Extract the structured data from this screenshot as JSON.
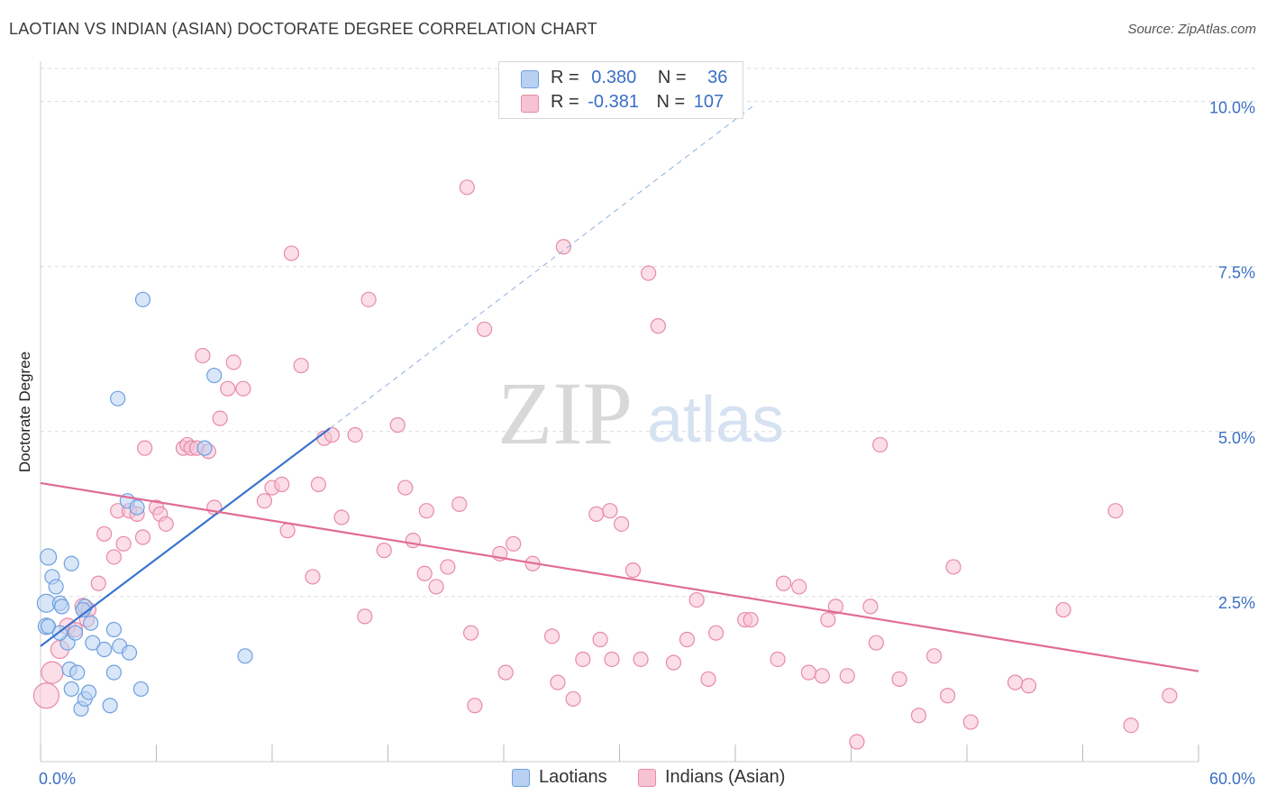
{
  "title": "LAOTIAN VS INDIAN (ASIAN) DOCTORATE DEGREE CORRELATION CHART",
  "source": "Source: ZipAtlas.com",
  "watermark": {
    "zip": "ZIP",
    "atlas": "atlas"
  },
  "legend": {
    "laotian": {
      "r_label": "R =",
      "r_value": "0.380",
      "n_label": "N =",
      "n_value": "36",
      "color": "#6fa0e0",
      "fill": "#b8d1f3"
    },
    "indian": {
      "r_label": "R =",
      "r_value": "-0.381",
      "n_label": "N =",
      "n_value": "107",
      "color": "#e88aa8",
      "fill": "#f7c3d3"
    }
  },
  "bottom_legend": {
    "laotian": "Laotians",
    "indian": "Indians (Asian)"
  },
  "chart_data": {
    "type": "scatter",
    "title": "LAOTIAN VS INDIAN (ASIAN) DOCTORATE DEGREE CORRELATION CHART",
    "xlabel": "",
    "ylabel": "Doctorate Degree",
    "xlim": [
      0,
      60
    ],
    "ylim": [
      0,
      10.5
    ],
    "x_tick_labels": [
      "0.0%",
      "60.0%"
    ],
    "y_ticks": [
      2.5,
      5.0,
      7.5,
      10.0
    ],
    "y_tick_labels": [
      "2.5%",
      "5.0%",
      "7.5%",
      "10.0%"
    ],
    "series": [
      {
        "name": "Laotians",
        "color": "#6fa0e0",
        "fill": "#b8d1f3",
        "points": [
          [
            0.4,
            3.1,
            9
          ],
          [
            0.3,
            2.4,
            10
          ],
          [
            0.3,
            2.05,
            9
          ],
          [
            0.6,
            2.8,
            8
          ],
          [
            0.8,
            2.65,
            8
          ],
          [
            0.4,
            2.05,
            8
          ],
          [
            1.0,
            2.4,
            8
          ],
          [
            1.1,
            2.35,
            8
          ],
          [
            1.4,
            1.8,
            8
          ],
          [
            1.0,
            1.95,
            8
          ],
          [
            1.6,
            3.0,
            8
          ],
          [
            1.8,
            1.95,
            8
          ],
          [
            1.5,
            1.4,
            8
          ],
          [
            1.9,
            1.35,
            8
          ],
          [
            1.6,
            1.1,
            8
          ],
          [
            2.1,
            0.8,
            8
          ],
          [
            2.3,
            0.95,
            8
          ],
          [
            2.5,
            1.05,
            8
          ],
          [
            2.3,
            2.35,
            8
          ],
          [
            2.6,
            2.1,
            8
          ],
          [
            2.7,
            1.8,
            8
          ],
          [
            3.3,
            1.7,
            8
          ],
          [
            3.6,
            0.85,
            8
          ],
          [
            3.8,
            2.0,
            8
          ],
          [
            3.8,
            1.35,
            8
          ],
          [
            4.1,
            1.75,
            8
          ],
          [
            4.6,
            1.65,
            8
          ],
          [
            5.2,
            1.1,
            8
          ],
          [
            4.5,
            3.95,
            8
          ],
          [
            5.0,
            3.85,
            8
          ],
          [
            4.0,
            5.5,
            8
          ],
          [
            5.3,
            7.0,
            8
          ],
          [
            9.0,
            5.85,
            8
          ],
          [
            8.5,
            4.75,
            8
          ],
          [
            10.6,
            1.6,
            8
          ],
          [
            2.2,
            2.3,
            8
          ]
        ]
      },
      {
        "name": "Indians (Asian)",
        "color": "#e88aa8",
        "fill": "#f7c3d3",
        "points": [
          [
            0.3,
            1.0,
            14
          ],
          [
            0.6,
            1.35,
            12
          ],
          [
            1.0,
            1.7,
            10
          ],
          [
            1.4,
            2.05,
            9
          ],
          [
            2.2,
            2.35,
            9
          ],
          [
            1.8,
            2.0,
            8
          ],
          [
            2.4,
            2.15,
            8
          ],
          [
            2.5,
            2.3,
            8
          ],
          [
            3.0,
            2.7,
            8
          ],
          [
            3.3,
            3.45,
            8
          ],
          [
            3.8,
            3.1,
            8
          ],
          [
            4.0,
            3.8,
            8
          ],
          [
            4.3,
            3.3,
            8
          ],
          [
            4.6,
            3.8,
            8
          ],
          [
            5.0,
            3.75,
            8
          ],
          [
            5.3,
            3.4,
            8
          ],
          [
            5.4,
            4.75,
            8
          ],
          [
            6.0,
            3.85,
            8
          ],
          [
            6.2,
            3.75,
            8
          ],
          [
            6.5,
            3.6,
            8
          ],
          [
            7.4,
            4.75,
            8
          ],
          [
            7.6,
            4.8,
            8
          ],
          [
            7.8,
            4.75,
            8
          ],
          [
            8.1,
            4.75,
            8
          ],
          [
            8.4,
            6.15,
            8
          ],
          [
            8.7,
            4.7,
            8
          ],
          [
            9.0,
            3.85,
            8
          ],
          [
            9.3,
            5.2,
            8
          ],
          [
            9.7,
            5.65,
            8
          ],
          [
            10.0,
            6.05,
            8
          ],
          [
            10.5,
            5.65,
            8
          ],
          [
            11.6,
            3.95,
            8
          ],
          [
            12.0,
            4.15,
            8
          ],
          [
            12.8,
            3.5,
            8
          ],
          [
            13.0,
            7.7,
            8
          ],
          [
            13.5,
            6.0,
            8
          ],
          [
            14.1,
            2.8,
            8
          ],
          [
            14.7,
            4.9,
            8
          ],
          [
            15.1,
            4.95,
            8
          ],
          [
            15.6,
            3.7,
            8
          ],
          [
            16.3,
            4.95,
            8
          ],
          [
            17.0,
            7.0,
            8
          ],
          [
            16.8,
            2.2,
            8
          ],
          [
            17.8,
            3.2,
            8
          ],
          [
            18.5,
            5.1,
            8
          ],
          [
            18.9,
            4.15,
            8
          ],
          [
            19.3,
            3.35,
            8
          ],
          [
            19.9,
            2.85,
            8
          ],
          [
            20.5,
            2.65,
            8
          ],
          [
            21.1,
            2.95,
            8
          ],
          [
            21.7,
            3.9,
            8
          ],
          [
            22.1,
            8.7,
            8
          ],
          [
            22.3,
            1.95,
            8
          ],
          [
            22.5,
            0.85,
            8
          ],
          [
            23.0,
            6.55,
            8
          ],
          [
            23.8,
            3.15,
            8
          ],
          [
            24.1,
            1.35,
            8
          ],
          [
            24.5,
            3.3,
            8
          ],
          [
            25.5,
            3.0,
            8
          ],
          [
            26.5,
            1.9,
            8
          ],
          [
            26.8,
            1.2,
            8
          ],
          [
            27.1,
            7.8,
            8
          ],
          [
            27.6,
            0.95,
            8
          ],
          [
            28.1,
            1.55,
            8
          ],
          [
            29.0,
            1.85,
            8
          ],
          [
            28.8,
            3.75,
            8
          ],
          [
            29.5,
            3.8,
            8
          ],
          [
            29.6,
            1.55,
            8
          ],
          [
            30.1,
            3.6,
            8
          ],
          [
            30.7,
            2.9,
            8
          ],
          [
            31.1,
            1.55,
            8
          ],
          [
            31.5,
            7.4,
            8
          ],
          [
            32.0,
            6.6,
            8
          ],
          [
            32.8,
            1.5,
            8
          ],
          [
            33.5,
            1.85,
            8
          ],
          [
            34.0,
            2.45,
            8
          ],
          [
            34.6,
            1.25,
            8
          ],
          [
            35.0,
            1.95,
            8
          ],
          [
            36.5,
            2.15,
            8
          ],
          [
            36.8,
            2.15,
            8
          ],
          [
            38.2,
            1.55,
            8
          ],
          [
            38.5,
            2.7,
            8
          ],
          [
            39.3,
            2.65,
            8
          ],
          [
            39.8,
            1.35,
            8
          ],
          [
            40.5,
            1.3,
            8
          ],
          [
            40.8,
            2.15,
            8
          ],
          [
            41.2,
            2.35,
            8
          ],
          [
            41.8,
            1.3,
            8
          ],
          [
            42.3,
            0.3,
            8
          ],
          [
            43.0,
            2.35,
            8
          ],
          [
            43.3,
            1.8,
            8
          ],
          [
            43.5,
            4.8,
            8
          ],
          [
            44.5,
            1.25,
            8
          ],
          [
            45.5,
            0.7,
            8
          ],
          [
            46.3,
            1.6,
            8
          ],
          [
            47.0,
            1.0,
            8
          ],
          [
            47.3,
            2.95,
            8
          ],
          [
            48.2,
            0.6,
            8
          ],
          [
            50.5,
            1.2,
            8
          ],
          [
            51.2,
            1.15,
            8
          ],
          [
            53.0,
            2.3,
            8
          ],
          [
            55.7,
            3.8,
            8
          ],
          [
            56.5,
            0.55,
            8
          ],
          [
            58.5,
            1.0,
            8
          ],
          [
            14.4,
            4.2,
            8
          ],
          [
            20.0,
            3.8,
            8
          ],
          [
            12.5,
            4.2,
            8
          ]
        ]
      }
    ],
    "trendlines": [
      {
        "series": "Laotians",
        "x": [
          0,
          15
        ],
        "y": [
          1.75,
          5.05
        ],
        "extended_x": [
          15,
          37
        ],
        "extended_y": [
          5.05,
          9.95
        ],
        "color": "#3a74cf"
      },
      {
        "series": "Indians (Asian)",
        "x": [
          0,
          60
        ],
        "y": [
          4.22,
          1.37
        ],
        "color": "#e06b96"
      }
    ]
  }
}
